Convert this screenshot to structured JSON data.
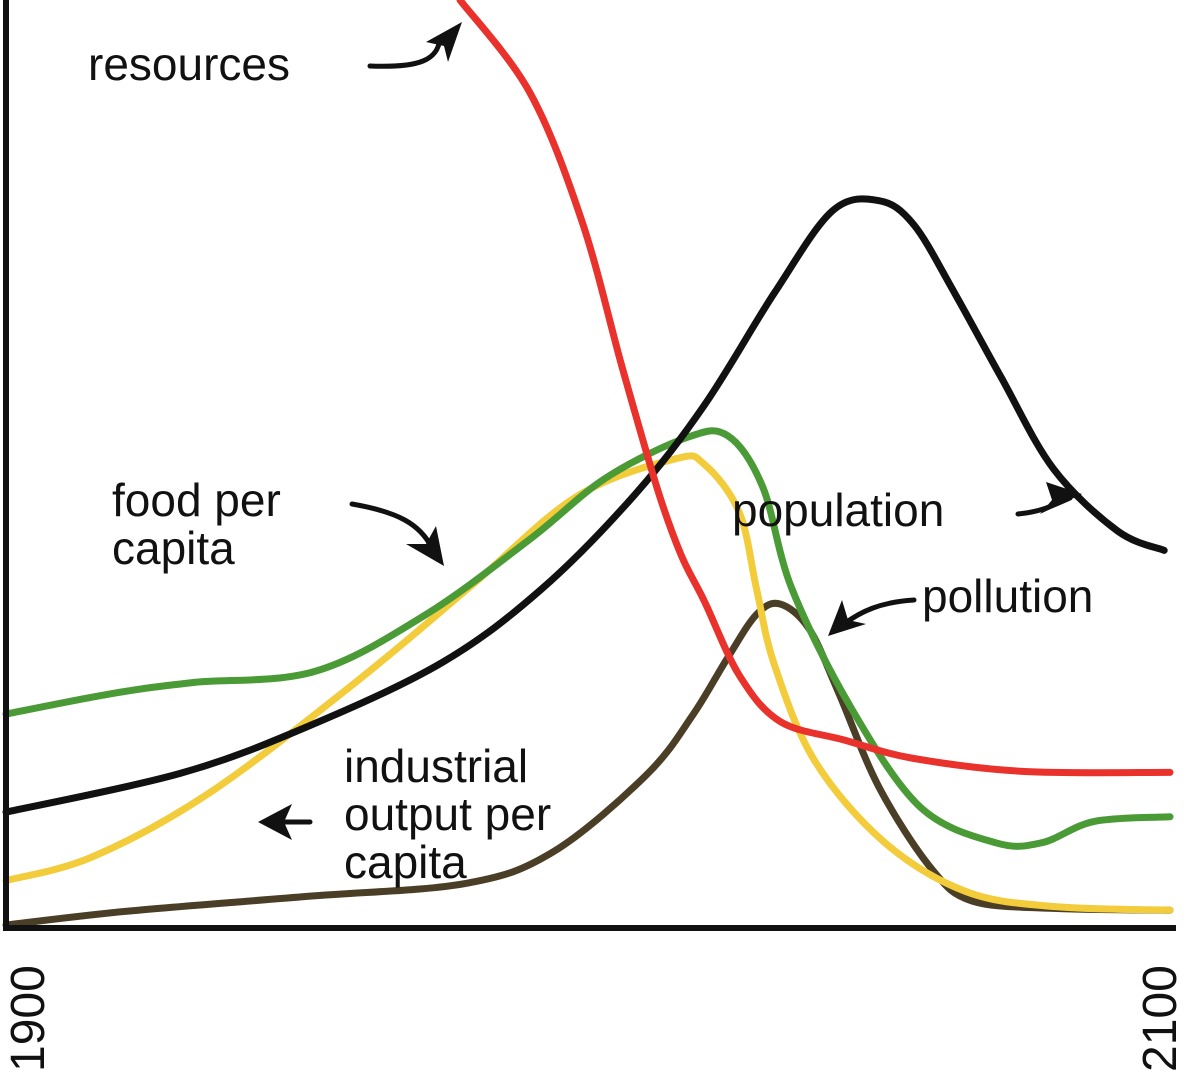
{
  "chart_data": {
    "type": "line",
    "title": "",
    "xlabel": "",
    "ylabel": "",
    "x_ticks": [
      "1900",
      "2100"
    ],
    "xlim": [
      1900,
      2100
    ],
    "ylim": [
      0,
      1
    ],
    "grid": false,
    "legend": "none",
    "series": [
      {
        "name": "resources",
        "color": "#e8322b",
        "points": [
          [
            1978,
            1.0
          ],
          [
            1990,
            0.9
          ],
          [
            1999,
            0.76
          ],
          [
            2006,
            0.6
          ],
          [
            2012,
            0.47
          ],
          [
            2016,
            0.4
          ],
          [
            2020,
            0.35
          ],
          [
            2026,
            0.27
          ],
          [
            2033,
            0.22
          ],
          [
            2044,
            0.2
          ],
          [
            2056,
            0.18
          ],
          [
            2075,
            0.166
          ],
          [
            2100,
            0.165
          ]
        ]
      },
      {
        "name": "population",
        "color": "#111111",
        "points": [
          [
            1900,
            0.122
          ],
          [
            1930,
            0.164
          ],
          [
            1952,
            0.215
          ],
          [
            1975,
            0.284
          ],
          [
            1992,
            0.363
          ],
          [
            2008,
            0.465
          ],
          [
            2020,
            0.562
          ],
          [
            2032,
            0.683
          ],
          [
            2042,
            0.772
          ],
          [
            2050,
            0.783
          ],
          [
            2056,
            0.757
          ],
          [
            2063,
            0.683
          ],
          [
            2071,
            0.592
          ],
          [
            2080,
            0.493
          ],
          [
            2091,
            0.426
          ],
          [
            2099,
            0.405
          ]
        ]
      },
      {
        "name": "food per capita",
        "color": "#4a9a36",
        "points": [
          [
            1900,
            0.228
          ],
          [
            1918,
            0.25
          ],
          [
            1932,
            0.262
          ],
          [
            1953,
            0.274
          ],
          [
            1972,
            0.335
          ],
          [
            1990,
            0.417
          ],
          [
            2003,
            0.483
          ],
          [
            2017,
            0.527
          ],
          [
            2024,
            0.529
          ],
          [
            2030,
            0.474
          ],
          [
            2035,
            0.364
          ],
          [
            2045,
            0.237
          ],
          [
            2057,
            0.128
          ],
          [
            2070,
            0.089
          ],
          [
            2078,
            0.089
          ],
          [
            2087,
            0.112
          ],
          [
            2100,
            0.117
          ]
        ]
      },
      {
        "name": "industrial output per capita",
        "color": "#f2cc3a",
        "points": [
          [
            1900,
            0.048
          ],
          [
            1915,
            0.074
          ],
          [
            1935,
            0.143
          ],
          [
            1960,
            0.262
          ],
          [
            1980,
            0.367
          ],
          [
            1998,
            0.463
          ],
          [
            2015,
            0.504
          ],
          [
            2020,
            0.498
          ],
          [
            2026,
            0.446
          ],
          [
            2029,
            0.362
          ],
          [
            2032,
            0.282
          ],
          [
            2039,
            0.177
          ],
          [
            2051,
            0.089
          ],
          [
            2065,
            0.036
          ],
          [
            2080,
            0.02
          ],
          [
            2100,
            0.016
          ]
        ]
      },
      {
        "name": "pollution",
        "color": "#4b3e26",
        "points": [
          [
            1900,
            0.0
          ],
          [
            1921,
            0.015
          ],
          [
            1952,
            0.031
          ],
          [
            1979,
            0.045
          ],
          [
            1994,
            0.079
          ],
          [
            2010,
            0.162
          ],
          [
            2018,
            0.227
          ],
          [
            2024,
            0.289
          ],
          [
            2029,
            0.336
          ],
          [
            2033,
            0.347
          ],
          [
            2038,
            0.32
          ],
          [
            2043,
            0.252
          ],
          [
            2050,
            0.149
          ],
          [
            2059,
            0.061
          ],
          [
            2066,
            0.026
          ],
          [
            2080,
            0.018
          ],
          [
            2100,
            0.016
          ]
        ]
      }
    ],
    "annotations": [
      {
        "label": "resources",
        "series": "resources"
      },
      {
        "label": "population",
        "series": "population"
      },
      {
        "label": "pollution",
        "series": "pollution"
      },
      {
        "label": "food per capita",
        "series": "food per capita"
      },
      {
        "label": "industrial output per capita",
        "series": "industrial output per capita"
      }
    ]
  },
  "labels": {
    "resources": "resources",
    "population": "population",
    "pollution": "pollution",
    "food_line1": "food per",
    "food_line2": "capita",
    "industrial_line1": "industrial",
    "industrial_line2": "output per",
    "industrial_line3": "capita"
  }
}
